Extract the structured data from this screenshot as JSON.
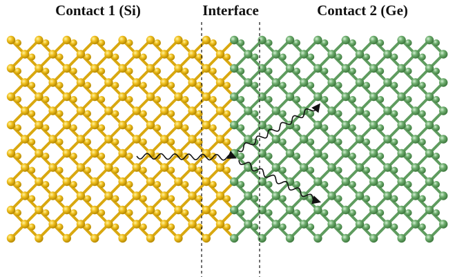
{
  "labels": {
    "left": "Contact 1 (Si)",
    "middle": "Interface",
    "right": "Contact 2 (Ge)"
  }
}
